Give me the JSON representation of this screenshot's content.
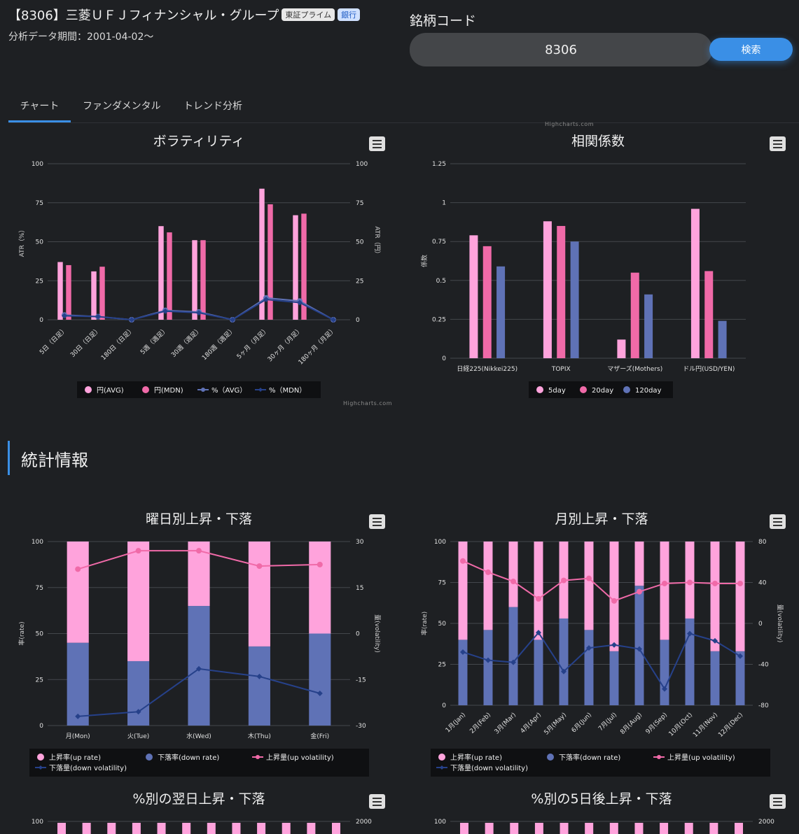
{
  "header": {
    "title": "【8306】三菱ＵＦＪフィナンシャル・グループ",
    "market_badge": "東証プライム",
    "sector_badge": "銀行",
    "period": "分析データ期間：2001-04-02〜"
  },
  "search": {
    "label": "銘柄コード",
    "value": "8306",
    "button": "検索"
  },
  "tabs": [
    {
      "label": "チャート",
      "active": true
    },
    {
      "label": "ファンダメンタル",
      "active": false
    },
    {
      "label": "トレンド分析",
      "active": false
    }
  ],
  "section": {
    "title": "統計情報"
  },
  "credit_text": "Highcharts.com",
  "colors": {
    "bg": "#1e2023",
    "pink_light": "#ffa3dc",
    "pink": "#f06aa8",
    "blue": "#5f72b6",
    "navy": "#26418a",
    "accent": "#3a8fe6",
    "grid": "#44474c"
  },
  "chart_data": [
    {
      "id": "volatility",
      "type": "bar",
      "title": "ボラティリティ",
      "categories": [
        "5日（日足）",
        "30日（日足）",
        "180日（日足）",
        "5週（週足）",
        "30週（週足）",
        "180週（週足）",
        "5ヶ月（月足）",
        "30ヶ月（月足）",
        "180ヶ月（月足）"
      ],
      "ylabel": "ATR（%）",
      "y2label": "ATR（円）",
      "ylim": [
        0,
        100
      ],
      "y2lim": [
        0,
        100
      ],
      "yticks": [
        0,
        25,
        50,
        75,
        100
      ],
      "y2ticks": [
        0,
        25,
        50,
        75,
        100
      ],
      "series": [
        {
          "name": "円(AVG)",
          "type": "bar",
          "axis": "right",
          "color": "#ffa3dc",
          "values": [
            37,
            31,
            0,
            60,
            51,
            0,
            84,
            67,
            0
          ]
        },
        {
          "name": "円(MDN)",
          "type": "bar",
          "axis": "right",
          "color": "#f06aa8",
          "values": [
            35,
            34,
            0,
            56,
            51,
            0,
            74,
            68,
            0
          ]
        },
        {
          "name": "%（AVG）",
          "type": "line",
          "axis": "left",
          "color": "#5f72b6",
          "marker": "circle",
          "values": [
            3,
            2,
            0,
            6,
            5,
            0,
            14,
            12,
            0
          ]
        },
        {
          "name": "%（MDN）",
          "type": "line",
          "axis": "left",
          "color": "#26418a",
          "marker": "diamond",
          "values": [
            2.5,
            2,
            0,
            5.5,
            4.5,
            0,
            13,
            11,
            0
          ]
        }
      ],
      "legend": "bottom"
    },
    {
      "id": "correlation",
      "type": "bar",
      "title": "相関係数",
      "categories": [
        "日経225(Nikkei225)",
        "TOPIX",
        "マザーズ(Mothers)",
        "ドル円(USD/YEN)"
      ],
      "ylabel": "係数",
      "ylim": [
        0,
        1.25
      ],
      "yticks": [
        0,
        0.25,
        0.5,
        0.75,
        1,
        1.25
      ],
      "series": [
        {
          "name": "5day",
          "type": "bar",
          "axis": "left",
          "color": "#ffa3dc",
          "values": [
            0.79,
            0.88,
            0.12,
            0.96
          ]
        },
        {
          "name": "20day",
          "type": "bar",
          "axis": "left",
          "color": "#f06aa8",
          "values": [
            0.72,
            0.85,
            0.55,
            0.56
          ]
        },
        {
          "name": "120day",
          "type": "bar",
          "axis": "left",
          "color": "#5f72b6",
          "values": [
            0.59,
            0.75,
            0.41,
            0.24
          ]
        }
      ],
      "legend": "bottom"
    },
    {
      "id": "weekday",
      "type": "bar",
      "title": "曜日別上昇・下落",
      "categories": [
        "月(Mon)",
        "火(Tue)",
        "水(Wed)",
        "木(Thu)",
        "金(Fri)"
      ],
      "ylabel": "率(rate)",
      "y2label": "量(volatility)",
      "ylim": [
        0,
        100
      ],
      "y2lim": [
        -30,
        30
      ],
      "yticks": [
        0,
        25,
        50,
        75,
        100
      ],
      "y2ticks": [
        -30,
        -15,
        0,
        15,
        30
      ],
      "stacked": true,
      "series": [
        {
          "name": "上昇率(up rate)",
          "type": "bar",
          "axis": "left",
          "color": "#ffa3dc",
          "values": [
            55,
            65,
            35,
            57,
            50
          ]
        },
        {
          "name": "下落率(down rate)",
          "type": "bar",
          "axis": "left",
          "color": "#5f72b6",
          "values": [
            45,
            35,
            65,
            43,
            50
          ]
        },
        {
          "name": "上昇量(up volatility)",
          "type": "line",
          "axis": "right",
          "color": "#f06aa8",
          "marker": "circle",
          "values": [
            21,
            27,
            27,
            22,
            22.5
          ]
        },
        {
          "name": "下落量(down volatility)",
          "type": "line",
          "axis": "right",
          "color": "#26418a",
          "marker": "diamond",
          "values": [
            -27,
            -25.5,
            -11.5,
            -14,
            -19.5
          ]
        }
      ],
      "legend": "bottom"
    },
    {
      "id": "monthly",
      "type": "bar",
      "title": "月別上昇・下落",
      "categories": [
        "1月(Jan)",
        "2月(Feb)",
        "3月(Mar)",
        "4月(Apr)",
        "5月(May)",
        "6月(Jun)",
        "7月(Jul)",
        "8月(Aug)",
        "9月(Sep)",
        "10月(Oct)",
        "11月(Nov)",
        "12月(Dec)"
      ],
      "ylabel": "率(rate)",
      "y2label": "量(volatility)",
      "ylim": [
        0,
        100
      ],
      "y2lim": [
        -80,
        80
      ],
      "yticks": [
        0,
        25,
        50,
        75,
        100
      ],
      "y2ticks": [
        -80,
        -40,
        0,
        40,
        80
      ],
      "stacked": true,
      "series": [
        {
          "name": "上昇率(up rate)",
          "type": "bar",
          "axis": "left",
          "color": "#ffa3dc",
          "values": [
            60,
            54,
            40,
            60,
            47,
            54,
            67,
            27,
            60,
            47,
            67,
            67
          ]
        },
        {
          "name": "下落率(down rate)",
          "type": "bar",
          "axis": "left",
          "color": "#5f72b6",
          "values": [
            40,
            46,
            60,
            40,
            53,
            46,
            33,
            73,
            40,
            53,
            33,
            33
          ]
        },
        {
          "name": "上昇量(up volatility)",
          "type": "line",
          "axis": "right",
          "color": "#f06aa8",
          "marker": "circle",
          "values": [
            61,
            50,
            41,
            24,
            42,
            44,
            22,
            31,
            39,
            40,
            39,
            39
          ]
        },
        {
          "name": "下落量(down volatility)",
          "type": "line",
          "axis": "right",
          "color": "#26418a",
          "marker": "diamond",
          "values": [
            -28,
            -36,
            -38,
            -9,
            -47,
            -24,
            -21,
            -25,
            -64,
            -10,
            -17,
            -32
          ]
        }
      ],
      "legend": "bottom"
    },
    {
      "id": "pct_next_day",
      "type": "bar",
      "title": "%別の翌日上昇・下落",
      "ylim": [
        0,
        100
      ],
      "y2lim": [
        0,
        2000
      ],
      "yticks": [
        100
      ],
      "y2ticks": [
        2000
      ],
      "partial": true
    },
    {
      "id": "pct_5day",
      "type": "bar",
      "title": "%別の5日後上昇・下落",
      "ylim": [
        0,
        100
      ],
      "y2lim": [
        0,
        2000
      ],
      "yticks": [
        100
      ],
      "y2ticks": [
        2000
      ],
      "partial": true
    }
  ]
}
